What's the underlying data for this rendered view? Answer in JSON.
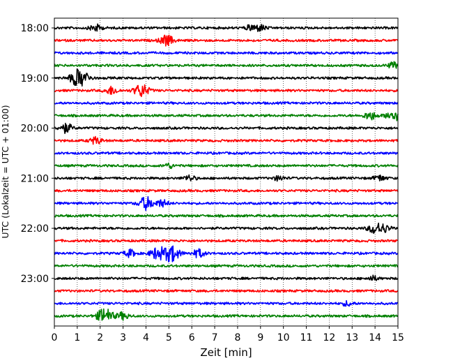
{
  "chart_data": {
    "type": "line",
    "title": "",
    "xlabel": "Zeit  [min]",
    "ylabel": "UTC (Lokalzeit = UTC + 01:00)",
    "xlim": [
      0,
      15
    ],
    "x_ticks": [
      "0",
      "1",
      "2",
      "3",
      "4",
      "5",
      "6",
      "7",
      "8",
      "9",
      "10",
      "11",
      "12",
      "13",
      "14",
      "15"
    ],
    "y_ticks": [
      {
        "label": "18:00",
        "row": 0
      },
      {
        "label": "19:00",
        "row": 4
      },
      {
        "label": "20:00",
        "row": 8
      },
      {
        "label": "21:00",
        "row": 12
      },
      {
        "label": "22:00",
        "row": 16
      },
      {
        "label": "23:00",
        "row": 20
      }
    ],
    "grid": "vertical dotted lines at each minute",
    "colors": {
      "black": "#000000",
      "red": "#ff0000",
      "blue": "#0000ff",
      "green": "#008000"
    },
    "traces": [
      {
        "start": "18:00",
        "color": "black",
        "events": [
          {
            "t": 1.8,
            "amp": 0.6
          },
          {
            "t": 8.6,
            "amp": 0.5
          },
          {
            "t": 9.0,
            "amp": 0.5
          }
        ]
      },
      {
        "start": "18:15",
        "color": "red",
        "events": [
          {
            "t": 4.9,
            "amp": 0.9
          }
        ]
      },
      {
        "start": "18:30",
        "color": "blue",
        "events": []
      },
      {
        "start": "18:45",
        "color": "green",
        "events": [
          {
            "t": 14.8,
            "amp": 0.5
          }
        ]
      },
      {
        "start": "19:00",
        "color": "black",
        "events": [
          {
            "t": 1.1,
            "amp": 1.6
          }
        ]
      },
      {
        "start": "19:15",
        "color": "red",
        "events": [
          {
            "t": 2.5,
            "amp": 0.7
          },
          {
            "t": 3.8,
            "amp": 1.1
          }
        ]
      },
      {
        "start": "19:30",
        "color": "blue",
        "events": []
      },
      {
        "start": "19:45",
        "color": "green",
        "events": [
          {
            "t": 13.8,
            "amp": 0.7
          },
          {
            "t": 14.8,
            "amp": 1.0
          }
        ]
      },
      {
        "start": "20:00",
        "color": "black",
        "events": [
          {
            "t": 0.5,
            "amp": 0.8
          }
        ]
      },
      {
        "start": "20:15",
        "color": "red",
        "events": [
          {
            "t": 1.8,
            "amp": 0.6
          }
        ]
      },
      {
        "start": "20:30",
        "color": "blue",
        "events": []
      },
      {
        "start": "20:45",
        "color": "green",
        "events": [
          {
            "t": 5.0,
            "amp": 0.4
          }
        ]
      },
      {
        "start": "21:00",
        "color": "black",
        "events": [
          {
            "t": 5.9,
            "amp": 0.5
          },
          {
            "t": 9.8,
            "amp": 0.4
          },
          {
            "t": 14.2,
            "amp": 0.5
          }
        ]
      },
      {
        "start": "21:15",
        "color": "red",
        "events": []
      },
      {
        "start": "21:30",
        "color": "blue",
        "events": [
          {
            "t": 4.0,
            "amp": 1.1
          },
          {
            "t": 4.7,
            "amp": 0.6
          }
        ]
      },
      {
        "start": "21:45",
        "color": "green",
        "events": []
      },
      {
        "start": "22:00",
        "color": "black",
        "events": [
          {
            "t": 14.0,
            "amp": 0.9
          },
          {
            "t": 14.4,
            "amp": 0.6
          }
        ]
      },
      {
        "start": "22:15",
        "color": "red",
        "events": []
      },
      {
        "start": "22:30",
        "color": "blue",
        "events": [
          {
            "t": 3.3,
            "amp": 0.6
          },
          {
            "t": 4.5,
            "amp": 1.0
          },
          {
            "t": 5.1,
            "amp": 1.4
          },
          {
            "t": 6.3,
            "amp": 0.7
          }
        ]
      },
      {
        "start": "22:45",
        "color": "green",
        "events": []
      },
      {
        "start": "23:00",
        "color": "black",
        "events": [
          {
            "t": 13.9,
            "amp": 0.4
          }
        ]
      },
      {
        "start": "23:15",
        "color": "red",
        "events": []
      },
      {
        "start": "23:30",
        "color": "blue",
        "events": [
          {
            "t": 12.8,
            "amp": 0.4
          }
        ]
      },
      {
        "start": "23:45",
        "color": "green",
        "events": [
          {
            "t": 2.2,
            "amp": 1.3
          },
          {
            "t": 3.0,
            "amp": 0.6
          }
        ]
      }
    ]
  }
}
